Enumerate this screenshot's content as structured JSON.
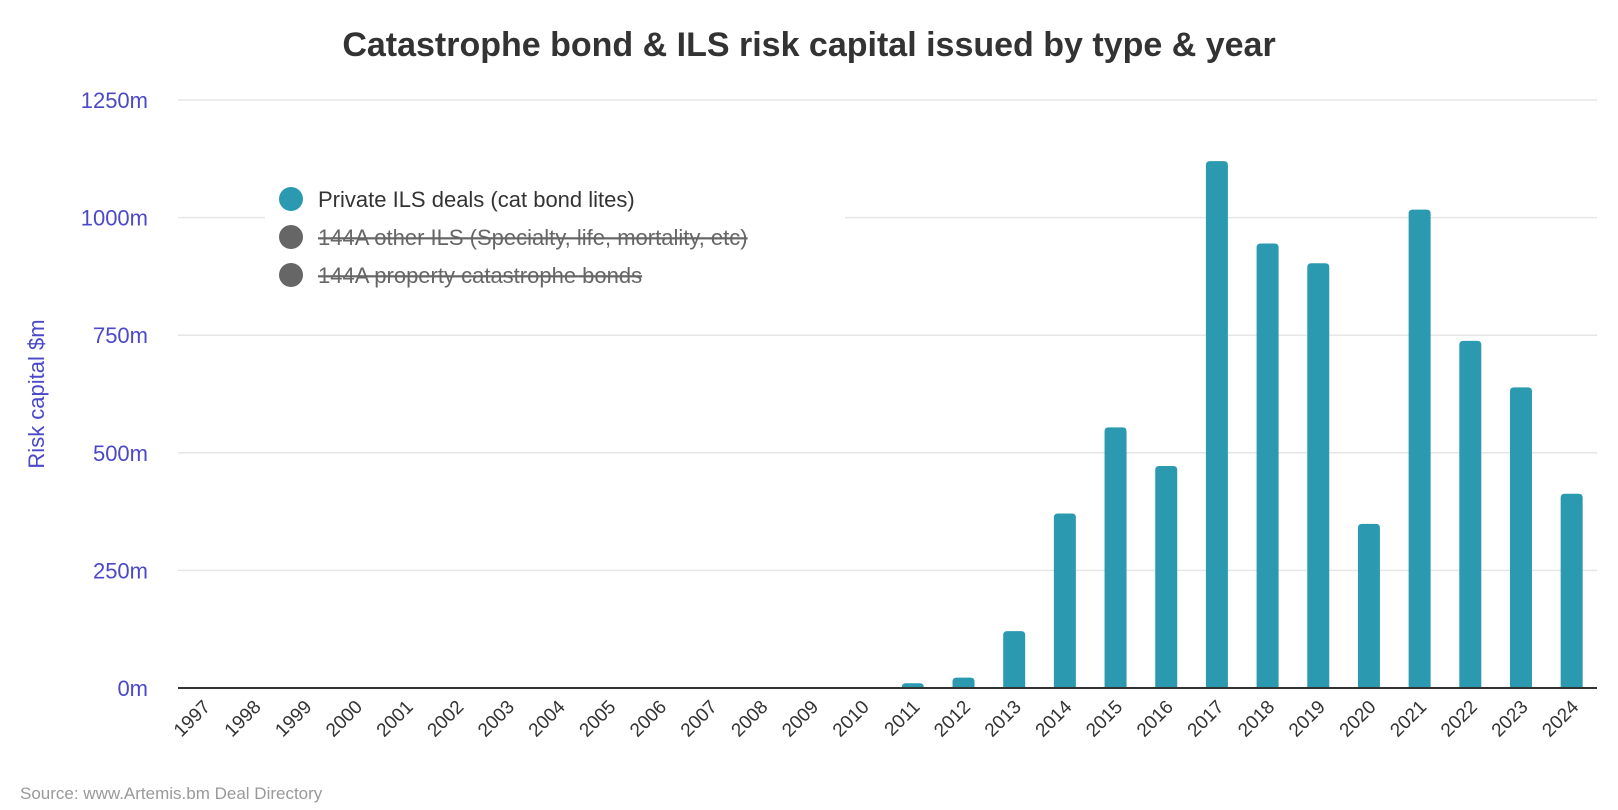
{
  "chart_data": {
    "type": "bar",
    "title": "Catastrophe bond & ILS risk capital issued by type & year",
    "xlabel": "",
    "ylabel": "Risk capital $m",
    "ylim": [
      0,
      1250
    ],
    "yticks": [
      "0m",
      "250m",
      "500m",
      "750m",
      "1000m",
      "1250m"
    ],
    "ytick_values": [
      0,
      250,
      500,
      750,
      1000,
      1250
    ],
    "grid": true,
    "legend_placement": "top-left",
    "categories": [
      "1997",
      "1998",
      "1999",
      "2000",
      "2001",
      "2002",
      "2003",
      "2004",
      "2005",
      "2006",
      "2007",
      "2008",
      "2009",
      "2010",
      "2011",
      "2012",
      "2013",
      "2014",
      "2015",
      "2016",
      "2017",
      "2018",
      "2019",
      "2020",
      "2021",
      "2022",
      "2023",
      "2024"
    ],
    "series": [
      {
        "name": "Private ILS deals (cat bond lites)",
        "color": "#2b9ab0",
        "visible": true,
        "values": [
          0,
          0,
          0,
          0,
          0,
          0,
          0,
          0,
          0,
          0,
          0,
          0,
          0,
          0,
          10,
          22,
          121,
          371,
          554,
          472,
          1120,
          945,
          903,
          349,
          1017,
          738,
          639,
          413
        ]
      },
      {
        "name": "144A other ILS (Specialty, life, mortality, etc)",
        "color": "#666666",
        "visible": false
      },
      {
        "name": "144A property catastrophe bonds",
        "color": "#666666",
        "visible": false
      }
    ],
    "source": "Source: www.Artemis.bm Deal Directory"
  }
}
